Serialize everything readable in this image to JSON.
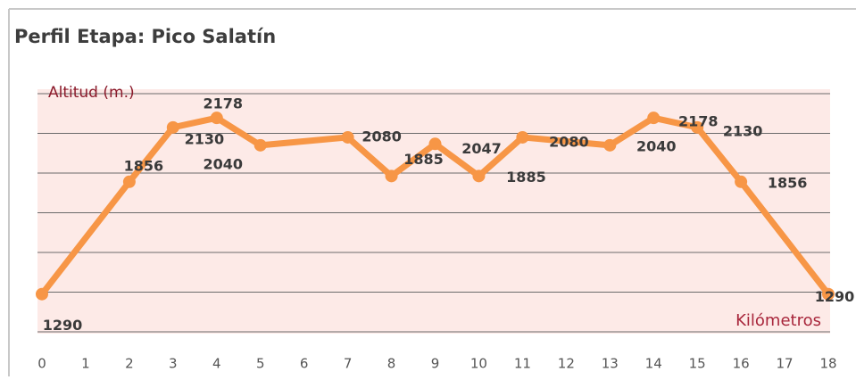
{
  "chart_data": {
    "type": "line",
    "title": "Perfil Etapa: Pico Salatín",
    "y_label": "Altitud (m.)",
    "x_label": "Kilómetros",
    "x": [
      0,
      2,
      3,
      4,
      5,
      7,
      8,
      9,
      10,
      11,
      13,
      14,
      15,
      16,
      18
    ],
    "values": [
      1290,
      1856,
      2130,
      2178,
      2040,
      2080,
      1885,
      2047,
      1885,
      2080,
      2040,
      2178,
      2130,
      1856,
      1290
    ],
    "color": "#f79646",
    "xlim": [
      0,
      18
    ],
    "xticks": [
      0,
      1,
      2,
      3,
      4,
      5,
      6,
      7,
      8,
      9,
      10,
      11,
      12,
      13,
      14,
      15,
      16,
      17,
      18
    ],
    "ylim": [
      1100,
      2300
    ],
    "yticks": [
      1100,
      1300,
      1500,
      1700,
      1900,
      2100,
      2300
    ],
    "grid": true
  }
}
